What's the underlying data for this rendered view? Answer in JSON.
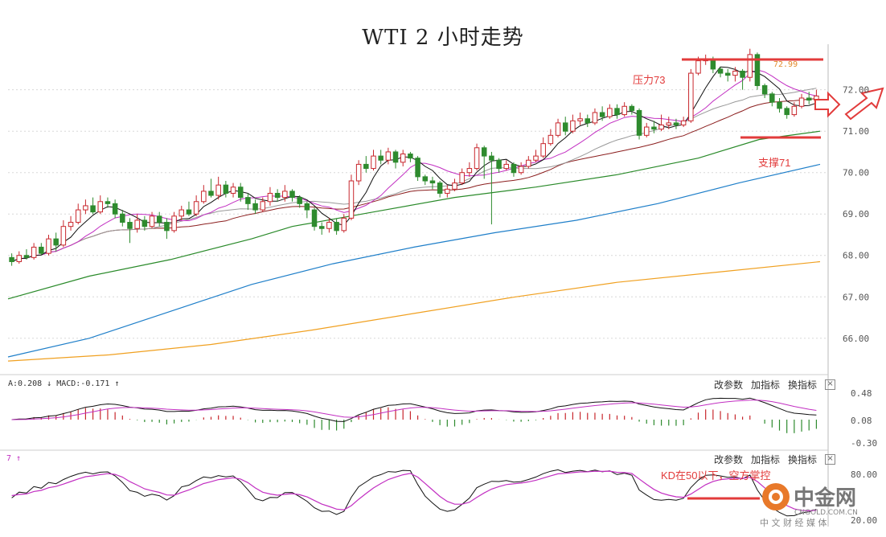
{
  "title": "WTI 2 小时走势",
  "colors": {
    "up": "#c8272d",
    "down": "#2e8b2e",
    "ma5": "#111111",
    "ma10": "#c22fc2",
    "ma20": "#999999",
    "ma30": "#8b1e1e",
    "ma60": "#2a8a2a",
    "ma120": "#1f7fc9",
    "ma240": "#f0a020",
    "annot": "#e23b3b"
  },
  "chart_data": {
    "type": "candlestick",
    "ylim": [
      65.2,
      73.1
    ],
    "y_ticks": [
      "72.00",
      "71.00",
      "70.00",
      "69.00",
      "68.00",
      "67.00",
      "66.00"
    ],
    "high_label": "72.99",
    "candles": [
      [
        67.95,
        67.85,
        68.05,
        67.75
      ],
      [
        67.85,
        68.0,
        68.1,
        67.8
      ],
      [
        68.0,
        67.95,
        68.15,
        67.9
      ],
      [
        67.95,
        68.2,
        68.3,
        67.9
      ],
      [
        68.2,
        68.05,
        68.3,
        68.0
      ],
      [
        68.05,
        68.4,
        68.5,
        68.0
      ],
      [
        68.4,
        68.25,
        68.55,
        68.1
      ],
      [
        68.25,
        68.7,
        68.85,
        68.2
      ],
      [
        68.7,
        68.8,
        68.95,
        68.6
      ],
      [
        68.8,
        69.1,
        69.25,
        68.75
      ],
      [
        69.1,
        69.2,
        69.35,
        69.0
      ],
      [
        69.2,
        69.05,
        69.4,
        69.0
      ],
      [
        69.05,
        69.3,
        69.45,
        69.0
      ],
      [
        69.3,
        69.25,
        69.4,
        69.15
      ],
      [
        69.25,
        69.0,
        69.35,
        68.9
      ],
      [
        69.0,
        68.8,
        69.1,
        68.7
      ],
      [
        68.8,
        68.65,
        68.9,
        68.3
      ],
      [
        68.65,
        68.85,
        69.0,
        68.55
      ],
      [
        68.85,
        68.7,
        68.95,
        68.6
      ],
      [
        68.7,
        68.95,
        69.05,
        68.65
      ],
      [
        68.95,
        68.8,
        69.05,
        68.7
      ],
      [
        68.8,
        68.6,
        68.9,
        68.4
      ],
      [
        68.6,
        68.95,
        69.05,
        68.55
      ],
      [
        68.95,
        69.1,
        69.2,
        68.85
      ],
      [
        69.1,
        69.0,
        69.3,
        68.95
      ],
      [
        69.0,
        69.3,
        69.45,
        68.95
      ],
      [
        69.3,
        69.55,
        69.7,
        69.25
      ],
      [
        69.55,
        69.45,
        69.85,
        69.4
      ],
      [
        69.45,
        69.7,
        69.9,
        69.35
      ],
      [
        69.7,
        69.5,
        69.8,
        69.4
      ],
      [
        69.5,
        69.65,
        69.75,
        69.4
      ],
      [
        69.65,
        69.4,
        69.75,
        69.3
      ],
      [
        69.4,
        69.25,
        69.5,
        69.1
      ],
      [
        69.25,
        69.1,
        69.35,
        69.0
      ],
      [
        69.1,
        69.3,
        69.4,
        69.05
      ],
      [
        69.3,
        69.5,
        69.65,
        69.2
      ],
      [
        69.5,
        69.4,
        69.6,
        69.3
      ],
      [
        69.4,
        69.55,
        69.7,
        69.3
      ],
      [
        69.55,
        69.4,
        69.6,
        69.3
      ],
      [
        69.4,
        69.25,
        69.45,
        69.15
      ],
      [
        69.25,
        69.1,
        69.3,
        68.9
      ],
      [
        69.1,
        68.7,
        69.15,
        68.6
      ],
      [
        68.7,
        68.65,
        68.8,
        68.5
      ],
      [
        68.65,
        68.8,
        68.9,
        68.55
      ],
      [
        68.8,
        68.6,
        68.9,
        68.5
      ],
      [
        68.6,
        68.9,
        69.0,
        68.55
      ],
      [
        68.9,
        69.8,
        69.95,
        68.85
      ],
      [
        69.8,
        70.2,
        70.3,
        69.7
      ],
      [
        70.2,
        70.1,
        70.4,
        70.0
      ],
      [
        70.1,
        70.4,
        70.55,
        70.05
      ],
      [
        70.4,
        70.3,
        70.55,
        70.2
      ],
      [
        70.3,
        70.5,
        70.6,
        70.2
      ],
      [
        70.5,
        70.25,
        70.55,
        70.1
      ],
      [
        70.25,
        70.45,
        70.55,
        70.15
      ],
      [
        70.45,
        70.35,
        70.5,
        70.25
      ],
      [
        70.35,
        69.9,
        70.4,
        69.8
      ],
      [
        69.9,
        69.8,
        69.95,
        69.7
      ],
      [
        69.8,
        69.75,
        69.9,
        69.6
      ],
      [
        69.75,
        69.5,
        69.8,
        69.4
      ],
      [
        69.5,
        69.6,
        69.7,
        69.4
      ],
      [
        69.6,
        69.75,
        69.85,
        69.55
      ],
      [
        69.75,
        70.0,
        70.1,
        69.7
      ],
      [
        70.0,
        70.1,
        70.25,
        69.9
      ],
      [
        70.1,
        70.6,
        70.7,
        70.05
      ],
      [
        70.6,
        70.4,
        70.65,
        69.85
      ],
      [
        70.4,
        70.3,
        70.5,
        68.75
      ],
      [
        70.3,
        70.1,
        70.35,
        70.0
      ],
      [
        70.1,
        70.2,
        70.3,
        70.05
      ],
      [
        70.2,
        70.0,
        70.25,
        69.9
      ],
      [
        70.0,
        70.15,
        70.25,
        69.95
      ],
      [
        70.15,
        70.3,
        70.4,
        70.1
      ],
      [
        70.3,
        70.4,
        70.55,
        70.25
      ],
      [
        70.4,
        70.7,
        70.85,
        70.35
      ],
      [
        70.7,
        70.9,
        71.05,
        70.65
      ],
      [
        70.9,
        71.2,
        71.3,
        70.85
      ],
      [
        71.2,
        71.0,
        71.35,
        70.9
      ],
      [
        71.0,
        71.25,
        71.4,
        70.95
      ],
      [
        71.25,
        71.3,
        71.45,
        71.15
      ],
      [
        71.3,
        71.2,
        71.4,
        71.1
      ],
      [
        71.2,
        71.45,
        71.55,
        71.15
      ],
      [
        71.45,
        71.35,
        71.6,
        71.25
      ],
      [
        71.35,
        71.55,
        71.65,
        71.3
      ],
      [
        71.55,
        71.4,
        71.65,
        71.3
      ],
      [
        71.4,
        71.6,
        71.7,
        71.35
      ],
      [
        71.6,
        71.5,
        71.65,
        71.4
      ],
      [
        71.5,
        70.9,
        71.55,
        70.8
      ],
      [
        70.9,
        71.1,
        71.2,
        70.85
      ],
      [
        71.1,
        71.05,
        71.25,
        70.95
      ],
      [
        71.05,
        71.15,
        71.4,
        71.0
      ],
      [
        71.15,
        71.2,
        71.35,
        71.05
      ],
      [
        71.2,
        71.15,
        71.3,
        71.05
      ],
      [
        71.15,
        71.25,
        71.35,
        71.1
      ],
      [
        71.25,
        72.4,
        72.5,
        71.2
      ],
      [
        72.4,
        72.7,
        72.8,
        72.35
      ],
      [
        72.7,
        72.75,
        72.85,
        72.6
      ],
      [
        72.75,
        72.5,
        72.8,
        72.4
      ],
      [
        72.5,
        72.4,
        72.55,
        72.3
      ],
      [
        72.4,
        72.35,
        72.5,
        72.2
      ],
      [
        72.35,
        72.45,
        72.55,
        72.2
      ],
      [
        72.45,
        72.3,
        72.5,
        72.0
      ],
      [
        72.3,
        72.85,
        72.99,
        72.2
      ],
      [
        72.85,
        72.1,
        72.9,
        72.0
      ],
      [
        72.1,
        71.9,
        72.15,
        71.8
      ],
      [
        71.9,
        71.7,
        71.95,
        71.6
      ],
      [
        71.7,
        71.55,
        71.8,
        71.45
      ],
      [
        71.55,
        71.4,
        71.6,
        71.3
      ],
      [
        71.4,
        71.6,
        71.7,
        71.35
      ],
      [
        71.6,
        71.8,
        71.9,
        71.55
      ],
      [
        71.8,
        71.75,
        71.95,
        71.65
      ],
      [
        71.75,
        71.85,
        72.0,
        71.7
      ]
    ],
    "ma_lines": [
      {
        "key": "ma240",
        "points": [
          [
            0,
            65.45
          ],
          [
            25,
            65.6
          ],
          [
            50,
            65.85
          ],
          [
            75,
            66.2
          ],
          [
            100,
            66.6
          ],
          [
            125,
            67.0
          ],
          [
            150,
            67.35
          ],
          [
            175,
            67.6
          ],
          [
            200,
            67.85
          ]
        ]
      },
      {
        "key": "ma120",
        "points": [
          [
            0,
            65.55
          ],
          [
            20,
            66.0
          ],
          [
            40,
            66.65
          ],
          [
            60,
            67.3
          ],
          [
            80,
            67.8
          ],
          [
            100,
            68.2
          ],
          [
            120,
            68.55
          ],
          [
            140,
            68.85
          ],
          [
            160,
            69.25
          ],
          [
            180,
            69.75
          ],
          [
            200,
            70.2
          ]
        ]
      },
      {
        "key": "ma60",
        "points": [
          [
            0,
            66.95
          ],
          [
            20,
            67.5
          ],
          [
            40,
            67.9
          ],
          [
            60,
            68.4
          ],
          [
            70,
            68.7
          ],
          [
            90,
            69.05
          ],
          [
            110,
            69.4
          ],
          [
            130,
            69.65
          ],
          [
            150,
            69.95
          ],
          [
            170,
            70.35
          ],
          [
            185,
            70.8
          ],
          [
            200,
            71.0
          ]
        ]
      }
    ],
    "annotations": {
      "resistance": "压力73",
      "support": "支撑71",
      "kd_note": "KD在50以下，空方掌控"
    },
    "resistance_value": 73,
    "support_value": 71
  },
  "macd_panel": {
    "label": "A:0.208 ↓ MACD:-0.171 ↑",
    "y_ticks": [
      "0.48",
      "0.08",
      "-0.30"
    ],
    "toolbar": {
      "change": "改参数",
      "add": "加指标",
      "swap": "换指标",
      "close": "×"
    }
  },
  "kd_panel": {
    "label": "7 ↑",
    "y_ticks": [
      "80.00",
      "20.00"
    ],
    "toolbar": {
      "change": "改参数",
      "add": "加指标",
      "swap": "换指标",
      "close": "×"
    }
  },
  "watermark": {
    "brand": "中金网",
    "url": "CNGOLD.COM.CN",
    "slogan": "中 文 财 经 媒 体"
  }
}
